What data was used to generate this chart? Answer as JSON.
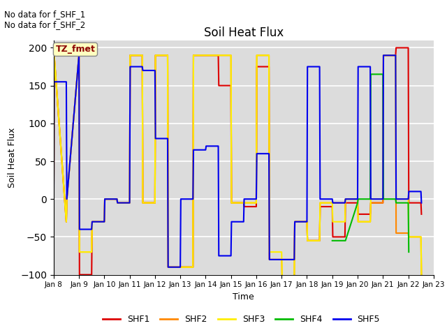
{
  "title": "Soil Heat Flux",
  "xlabel": "Time",
  "ylabel": "Soil Heat Flux",
  "ylim": [
    -100,
    210
  ],
  "yticks": [
    -100,
    -50,
    0,
    50,
    100,
    150,
    200
  ],
  "plot_bg": "#dcdcdc",
  "fig_bg": "#ffffff",
  "annotation_text": "No data for f_SHF_1\nNo data for f_SHF_2",
  "tz_label": "TZ_fmet",
  "series": {
    "SHF1": {
      "color": "#dd0000",
      "x": [
        8.0,
        8.02,
        8.5,
        8.52,
        9.0,
        9.02,
        9.5,
        9.52,
        10.0,
        10.02,
        10.5,
        10.52,
        11.0,
        11.02,
        11.5,
        11.52,
        12.0,
        12.02,
        12.5,
        12.52,
        13.0,
        13.02,
        13.5,
        13.52,
        14.0,
        14.02,
        14.5,
        14.52,
        15.0,
        15.02,
        15.5,
        15.52,
        16.0,
        16.02,
        16.5,
        16.52,
        17.0,
        17.02,
        17.5,
        17.52,
        18.0,
        18.02,
        18.5,
        18.52,
        19.0,
        19.02,
        19.5,
        19.52,
        20.0,
        20.02,
        20.5,
        20.52,
        21.0,
        21.02,
        21.5,
        21.52,
        22.0,
        22.02,
        22.5,
        22.52
      ],
      "y": [
        -30,
        190,
        -30,
        0,
        190,
        -100,
        -100,
        -30,
        -30,
        0,
        0,
        -5,
        -5,
        190,
        190,
        -5,
        -5,
        190,
        190,
        -90,
        -90,
        -90,
        -90,
        190,
        190,
        190,
        190,
        150,
        150,
        -5,
        -5,
        -10,
        -10,
        175,
        175,
        -80,
        -80,
        -80,
        -80,
        -30,
        -30,
        -55,
        -55,
        -10,
        -10,
        -50,
        -50,
        -5,
        -5,
        -20,
        -20,
        -5,
        -5,
        190,
        190,
        200,
        200,
        -5,
        -5,
        -20
      ]
    },
    "SHF2": {
      "color": "#ff8800",
      "x": [
        8.0,
        8.02,
        8.5,
        8.52,
        9.0,
        9.02,
        9.5,
        9.52,
        10.0,
        10.02,
        10.5,
        10.52,
        11.0,
        11.02,
        11.5,
        11.52,
        12.0,
        12.02,
        12.5,
        12.52,
        13.0,
        13.02,
        13.5,
        13.52,
        14.0,
        14.02,
        14.5,
        14.52,
        15.0,
        15.02,
        15.5,
        15.52,
        16.0,
        16.02,
        16.5,
        16.52,
        17.0,
        17.02,
        17.5,
        17.52,
        18.0,
        18.02,
        18.5,
        18.52,
        19.0,
        19.02,
        19.5,
        19.52,
        20.0,
        20.02,
        20.5,
        20.52,
        21.0,
        21.02,
        21.5,
        21.52,
        22.0,
        22.02,
        22.5,
        22.52
      ],
      "y": [
        -30,
        190,
        -30,
        0,
        190,
        -70,
        -70,
        -30,
        -30,
        0,
        0,
        -5,
        -5,
        190,
        190,
        -5,
        -5,
        190,
        190,
        -90,
        -90,
        -90,
        -90,
        190,
        190,
        190,
        190,
        190,
        190,
        -5,
        -5,
        -5,
        -5,
        190,
        190,
        -80,
        -80,
        -105,
        -105,
        -30,
        -30,
        -55,
        -55,
        -5,
        -5,
        -5,
        -5,
        0,
        0,
        -30,
        -30,
        -5,
        -5,
        190,
        190,
        -45,
        -45,
        -50,
        -50,
        -100
      ]
    },
    "SHF3": {
      "color": "#ffee00",
      "x": [
        8.0,
        8.02,
        8.5,
        8.52,
        9.0,
        9.02,
        9.5,
        9.52,
        10.0,
        10.02,
        10.5,
        10.52,
        11.0,
        11.02,
        11.5,
        11.52,
        12.0,
        12.02,
        12.5,
        12.52,
        13.0,
        13.02,
        13.5,
        13.52,
        14.0,
        14.02,
        14.5,
        14.52,
        15.0,
        15.02,
        15.5,
        15.52,
        16.0,
        16.02,
        16.5,
        16.52,
        17.0,
        17.02,
        17.5,
        17.52,
        18.0,
        18.02,
        18.5,
        18.52,
        19.0,
        19.02,
        19.5,
        19.52,
        20.0,
        20.02,
        20.5,
        20.52,
        21.0,
        21.02,
        21.5,
        21.52,
        22.0,
        22.02,
        22.5,
        22.52
      ],
      "y": [
        -30,
        190,
        -30,
        0,
        190,
        -70,
        -70,
        -30,
        -30,
        0,
        0,
        -5,
        -5,
        190,
        190,
        -5,
        -5,
        190,
        190,
        -90,
        -90,
        -90,
        -90,
        190,
        190,
        190,
        190,
        190,
        190,
        -5,
        -5,
        -5,
        -5,
        190,
        190,
        -70,
        -70,
        -105,
        -105,
        -30,
        -30,
        -55,
        -55,
        -5,
        -5,
        -30,
        -30,
        0,
        0,
        -30,
        -30,
        0,
        0,
        190,
        190,
        0,
        0,
        -50,
        -50,
        -100
      ]
    },
    "SHF4": {
      "color": "#00bb00",
      "x": [
        19.0,
        19.02,
        19.5,
        19.52,
        20.0,
        20.02,
        20.5,
        20.52,
        21.0,
        21.02,
        21.5,
        21.52,
        22.0,
        22.02
      ],
      "y": [
        -55,
        -55,
        -55,
        -55,
        -5,
        0,
        0,
        165,
        165,
        0,
        0,
        -5,
        -5,
        -70
      ]
    },
    "SHF5": {
      "color": "#0000ee",
      "x": [
        8.0,
        8.02,
        8.5,
        8.52,
        9.0,
        9.02,
        9.5,
        9.52,
        10.0,
        10.02,
        10.5,
        10.52,
        11.0,
        11.02,
        11.5,
        11.52,
        12.0,
        12.02,
        12.5,
        12.52,
        13.0,
        13.02,
        13.5,
        13.52,
        14.0,
        14.02,
        14.5,
        14.52,
        15.0,
        15.02,
        15.5,
        15.52,
        16.0,
        16.02,
        16.5,
        16.52,
        17.0,
        17.02,
        17.5,
        17.52,
        18.0,
        18.02,
        18.5,
        18.52,
        19.0,
        19.02,
        19.5,
        19.52,
        20.0,
        20.02,
        20.5,
        20.52,
        21.0,
        21.02,
        21.5,
        21.52,
        22.0,
        22.02,
        22.5,
        22.52
      ],
      "y": [
        -30,
        155,
        155,
        0,
        190,
        -40,
        -40,
        -30,
        -30,
        0,
        0,
        -5,
        -5,
        175,
        175,
        170,
        170,
        80,
        80,
        -90,
        -90,
        0,
        0,
        65,
        65,
        70,
        70,
        -75,
        -75,
        -30,
        -30,
        0,
        0,
        60,
        60,
        -80,
        -80,
        -80,
        -80,
        -30,
        -30,
        175,
        175,
        0,
        0,
        -5,
        -5,
        0,
        0,
        175,
        175,
        0,
        0,
        190,
        190,
        0,
        0,
        10,
        10,
        -5
      ]
    }
  },
  "xtick_labels": [
    "Jan 8",
    "Jan 9",
    "Jan 10",
    "Jan 11",
    "Jan 12",
    "Jan 13",
    "Jan 14",
    "Jan 15",
    "Jan 16",
    "Jan 17",
    "Jan 18",
    "Jan 19",
    "Jan 20",
    "Jan 21",
    "Jan 22",
    "Jan 23"
  ],
  "xtick_positions": [
    8,
    9,
    10,
    11,
    12,
    13,
    14,
    15,
    16,
    17,
    18,
    19,
    20,
    21,
    22,
    23
  ],
  "legend_labels": [
    "SHF1",
    "SHF2",
    "SHF3",
    "SHF4",
    "SHF5"
  ]
}
